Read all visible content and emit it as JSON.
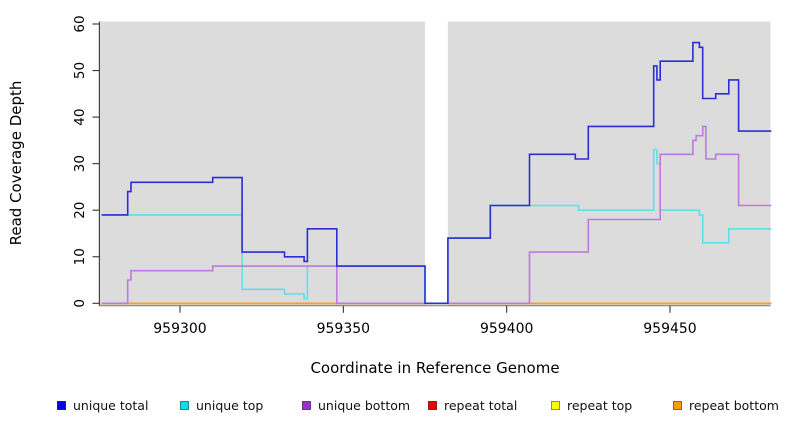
{
  "chart_data": {
    "type": "line",
    "subtype": "step",
    "title": "",
    "xlabel": "Coordinate in Reference Genome",
    "ylabel": "Read Coverage Depth",
    "xlim": [
      959276,
      959481
    ],
    "ylim": [
      0,
      60
    ],
    "x_axis": {
      "ticks": [
        959300,
        959350,
        959400,
        959450
      ]
    },
    "y_axis": {
      "ticks": [
        0,
        10,
        20,
        30,
        40,
        50,
        60
      ]
    },
    "grid": false,
    "legend_position": "bottom",
    "plot_background": "#dcdcdc",
    "gap_region": {
      "start": 959375,
      "end": 959382,
      "color": "#ffffff"
    },
    "series": [
      {
        "name": "repeat total",
        "color": "#e00000",
        "steps": [
          [
            959276,
            0
          ]
        ]
      },
      {
        "name": "repeat top",
        "color": "#ffe800",
        "steps": [
          [
            959276,
            0
          ]
        ]
      },
      {
        "name": "repeat bottom",
        "color": "#ff9d1e",
        "steps": [
          [
            959276,
            0
          ]
        ]
      },
      {
        "name": "unique top",
        "color": "#5fdfe8",
        "steps": [
          [
            959276,
            19
          ],
          [
            959319,
            3
          ],
          [
            959332,
            2
          ],
          [
            959338,
            1
          ],
          [
            959339,
            8
          ],
          [
            959375,
            0
          ],
          [
            959382,
            14
          ],
          [
            959395,
            21
          ],
          [
            959422,
            20
          ],
          [
            959445,
            33
          ],
          [
            959446,
            30
          ],
          [
            959447,
            20
          ],
          [
            959459,
            19
          ],
          [
            959460,
            13
          ],
          [
            959468,
            16
          ]
        ]
      },
      {
        "name": "unique bottom",
        "color": "#bd7ade",
        "steps": [
          [
            959276,
            0
          ],
          [
            959284,
            5
          ],
          [
            959285,
            7
          ],
          [
            959310,
            8
          ],
          [
            959348,
            0
          ],
          [
            959407,
            11
          ],
          [
            959425,
            18
          ],
          [
            959447,
            32
          ],
          [
            959457,
            35
          ],
          [
            959458,
            36
          ],
          [
            959460,
            38
          ],
          [
            959461,
            31
          ],
          [
            959464,
            32
          ],
          [
            959471,
            21
          ]
        ]
      },
      {
        "name": "unique total",
        "color": "#2d2dd6",
        "steps": [
          [
            959276,
            19
          ],
          [
            959284,
            24
          ],
          [
            959285,
            26
          ],
          [
            959310,
            27
          ],
          [
            959319,
            11
          ],
          [
            959332,
            10
          ],
          [
            959338,
            9
          ],
          [
            959339,
            16
          ],
          [
            959348,
            8
          ],
          [
            959375,
            0
          ],
          [
            959382,
            14
          ],
          [
            959395,
            21
          ],
          [
            959407,
            32
          ],
          [
            959421,
            31
          ],
          [
            959425,
            38
          ],
          [
            959445,
            51
          ],
          [
            959446,
            48
          ],
          [
            959447,
            52
          ],
          [
            959457,
            56
          ],
          [
            959459,
            55
          ],
          [
            959460,
            44
          ],
          [
            959464,
            45
          ],
          [
            959468,
            48
          ],
          [
            959471,
            37
          ]
        ]
      }
    ]
  },
  "axes_text": {
    "x_label": "Coordinate in Reference Genome",
    "y_label": "Read Coverage Depth"
  },
  "legend": {
    "items": [
      {
        "label": "unique total",
        "color": "#0000ee"
      },
      {
        "label": "unique top",
        "color": "#00e1ea"
      },
      {
        "label": "unique bottom",
        "color": "#9932cc"
      },
      {
        "label": "repeat total",
        "color": "#ee0000"
      },
      {
        "label": "repeat top",
        "color": "#ffff00"
      },
      {
        "label": "repeat bottom",
        "color": "#ff9814"
      }
    ]
  }
}
